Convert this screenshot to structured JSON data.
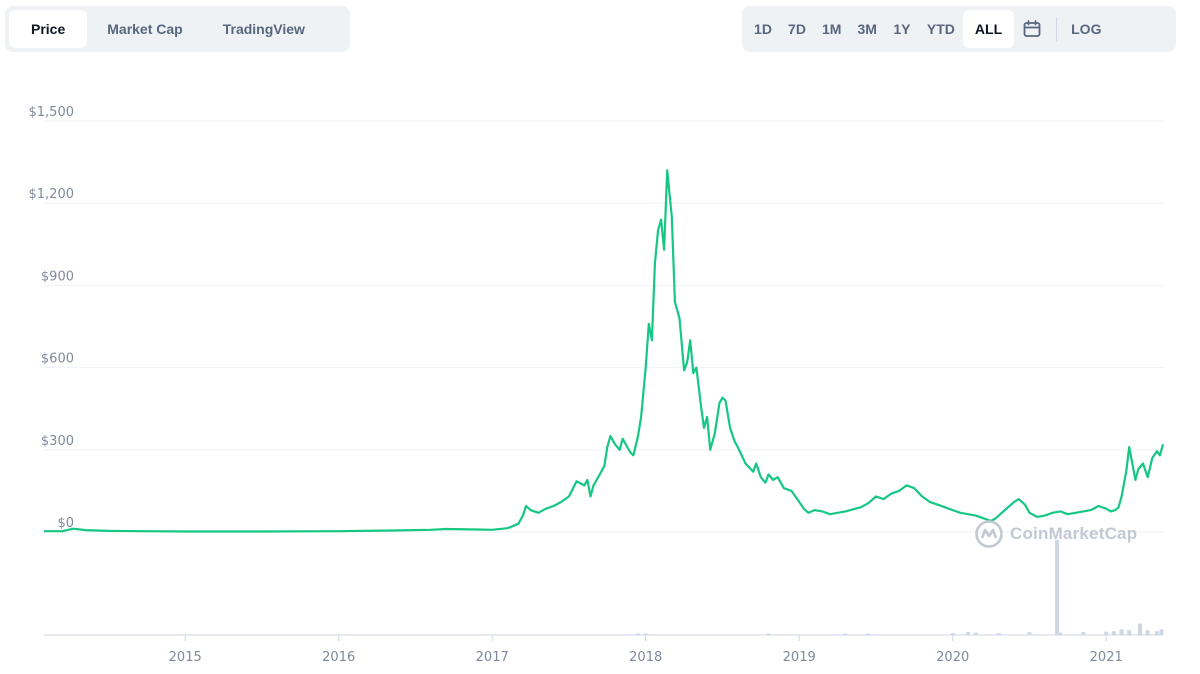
{
  "tabs": [
    {
      "label": "Price",
      "active": true
    },
    {
      "label": "Market Cap",
      "active": false
    },
    {
      "label": "TradingView",
      "active": false
    }
  ],
  "ranges": [
    {
      "label": "1D",
      "active": false
    },
    {
      "label": "7D",
      "active": false
    },
    {
      "label": "1M",
      "active": false
    },
    {
      "label": "3M",
      "active": false
    },
    {
      "label": "1Y",
      "active": false
    },
    {
      "label": "YTD",
      "active": false
    },
    {
      "label": "ALL",
      "active": true
    }
  ],
  "calendar_icon": "calendar-icon",
  "log_label": "LOG",
  "watermark": "CoinMarketCap",
  "colors": {
    "line": "#16c784",
    "grid": "#eff2f5",
    "volume": "#cfd6e4",
    "axis": "#cfd6e4"
  },
  "chart_data": {
    "type": "line",
    "ylim": [
      0,
      1500
    ],
    "y_ticks": [
      {
        "value": 0,
        "label": "$0"
      },
      {
        "value": 300,
        "label": "$300"
      },
      {
        "value": 600,
        "label": "$600"
      },
      {
        "value": 900,
        "label": "$900"
      },
      {
        "value": 1200,
        "label": "$1,200"
      },
      {
        "value": 1500,
        "label": "$1,500"
      }
    ],
    "x_range": [
      2014.08,
      2021.37
    ],
    "x_ticks": [
      {
        "value": 2015,
        "label": "2015"
      },
      {
        "value": 2016,
        "label": "2016"
      },
      {
        "value": 2017,
        "label": "2017"
      },
      {
        "value": 2018,
        "label": "2018"
      },
      {
        "value": 2019,
        "label": "2019"
      },
      {
        "value": 2020,
        "label": "2020"
      },
      {
        "value": 2021,
        "label": "2021"
      }
    ],
    "grid": true,
    "series": [
      {
        "points": [
          [
            2014.08,
            3
          ],
          [
            2014.2,
            3
          ],
          [
            2014.27,
            12
          ],
          [
            2014.35,
            7
          ],
          [
            2014.5,
            4
          ],
          [
            2015.0,
            2
          ],
          [
            2015.5,
            2
          ],
          [
            2016.0,
            3
          ],
          [
            2016.3,
            5
          ],
          [
            2016.6,
            8
          ],
          [
            2016.7,
            11
          ],
          [
            2016.9,
            9
          ],
          [
            2017.0,
            8
          ],
          [
            2017.1,
            14
          ],
          [
            2017.17,
            30
          ],
          [
            2017.2,
            60
          ],
          [
            2017.22,
            95
          ],
          [
            2017.25,
            80
          ],
          [
            2017.3,
            70
          ],
          [
            2017.35,
            85
          ],
          [
            2017.4,
            95
          ],
          [
            2017.45,
            110
          ],
          [
            2017.5,
            130
          ],
          [
            2017.55,
            185
          ],
          [
            2017.6,
            170
          ],
          [
            2017.62,
            190
          ],
          [
            2017.64,
            130
          ],
          [
            2017.66,
            170
          ],
          [
            2017.7,
            210
          ],
          [
            2017.73,
            240
          ],
          [
            2017.75,
            310
          ],
          [
            2017.77,
            350
          ],
          [
            2017.8,
            320
          ],
          [
            2017.83,
            300
          ],
          [
            2017.85,
            340
          ],
          [
            2017.88,
            310
          ],
          [
            2017.9,
            290
          ],
          [
            2017.92,
            280
          ],
          [
            2017.95,
            350
          ],
          [
            2017.97,
            420
          ],
          [
            2018.0,
            600
          ],
          [
            2018.02,
            760
          ],
          [
            2018.04,
            700
          ],
          [
            2018.06,
            980
          ],
          [
            2018.08,
            1100
          ],
          [
            2018.1,
            1140
          ],
          [
            2018.12,
            1030
          ],
          [
            2018.14,
            1320
          ],
          [
            2018.17,
            1150
          ],
          [
            2018.19,
            840
          ],
          [
            2018.22,
            780
          ],
          [
            2018.25,
            590
          ],
          [
            2018.27,
            620
          ],
          [
            2018.29,
            700
          ],
          [
            2018.31,
            580
          ],
          [
            2018.33,
            600
          ],
          [
            2018.36,
            460
          ],
          [
            2018.38,
            380
          ],
          [
            2018.4,
            420
          ],
          [
            2018.42,
            300
          ],
          [
            2018.45,
            360
          ],
          [
            2018.48,
            470
          ],
          [
            2018.5,
            490
          ],
          [
            2018.52,
            480
          ],
          [
            2018.55,
            380
          ],
          [
            2018.58,
            330
          ],
          [
            2018.6,
            310
          ],
          [
            2018.65,
            250
          ],
          [
            2018.7,
            220
          ],
          [
            2018.72,
            250
          ],
          [
            2018.75,
            200
          ],
          [
            2018.78,
            180
          ],
          [
            2018.8,
            210
          ],
          [
            2018.83,
            190
          ],
          [
            2018.86,
            200
          ],
          [
            2018.9,
            160
          ],
          [
            2018.95,
            150
          ],
          [
            2019.0,
            110
          ],
          [
            2019.03,
            85
          ],
          [
            2019.06,
            70
          ],
          [
            2019.1,
            80
          ],
          [
            2019.15,
            75
          ],
          [
            2019.2,
            65
          ],
          [
            2019.3,
            75
          ],
          [
            2019.4,
            90
          ],
          [
            2019.45,
            105
          ],
          [
            2019.5,
            130
          ],
          [
            2019.55,
            120
          ],
          [
            2019.6,
            140
          ],
          [
            2019.65,
            150
          ],
          [
            2019.7,
            170
          ],
          [
            2019.75,
            160
          ],
          [
            2019.8,
            130
          ],
          [
            2019.85,
            110
          ],
          [
            2019.9,
            100
          ],
          [
            2019.95,
            90
          ],
          [
            2020.0,
            80
          ],
          [
            2020.05,
            70
          ],
          [
            2020.1,
            65
          ],
          [
            2020.15,
            60
          ],
          [
            2020.2,
            50
          ],
          [
            2020.25,
            40
          ],
          [
            2020.28,
            50
          ],
          [
            2020.32,
            70
          ],
          [
            2020.36,
            90
          ],
          [
            2020.4,
            110
          ],
          [
            2020.43,
            120
          ],
          [
            2020.47,
            100
          ],
          [
            2020.5,
            70
          ],
          [
            2020.55,
            55
          ],
          [
            2020.6,
            60
          ],
          [
            2020.65,
            70
          ],
          [
            2020.7,
            75
          ],
          [
            2020.75,
            65
          ],
          [
            2020.8,
            70
          ],
          [
            2020.85,
            75
          ],
          [
            2020.9,
            80
          ],
          [
            2020.95,
            95
          ],
          [
            2021.0,
            85
          ],
          [
            2021.03,
            75
          ],
          [
            2021.06,
            80
          ],
          [
            2021.08,
            90
          ],
          [
            2021.1,
            130
          ],
          [
            2021.13,
            220
          ],
          [
            2021.15,
            310
          ],
          [
            2021.17,
            250
          ],
          [
            2021.19,
            190
          ],
          [
            2021.21,
            230
          ],
          [
            2021.24,
            250
          ],
          [
            2021.27,
            200
          ],
          [
            2021.3,
            270
          ],
          [
            2021.33,
            295
          ],
          [
            2021.35,
            280
          ],
          [
            2021.37,
            320
          ]
        ]
      }
    ],
    "volume": [
      [
        2017.95,
        0.01
      ],
      [
        2018.0,
        0.015
      ],
      [
        2018.8,
        0.01
      ],
      [
        2019.3,
        0.015
      ],
      [
        2019.45,
        0.012
      ],
      [
        2020.0,
        0.02
      ],
      [
        2020.1,
        0.03
      ],
      [
        2020.15,
        0.025
      ],
      [
        2020.3,
        0.02
      ],
      [
        2020.5,
        0.03
      ],
      [
        2020.7,
        0.025
      ],
      [
        2020.85,
        0.03
      ],
      [
        2021.0,
        0.035
      ],
      [
        2021.05,
        0.04
      ],
      [
        2021.1,
        0.06
      ],
      [
        2021.15,
        0.05
      ],
      [
        2021.22,
        0.12
      ],
      [
        2021.27,
        0.05
      ],
      [
        2021.33,
        0.04
      ],
      [
        2021.36,
        0.06
      ]
    ],
    "volume_spike": [
      2020.68,
      1.0
    ]
  }
}
